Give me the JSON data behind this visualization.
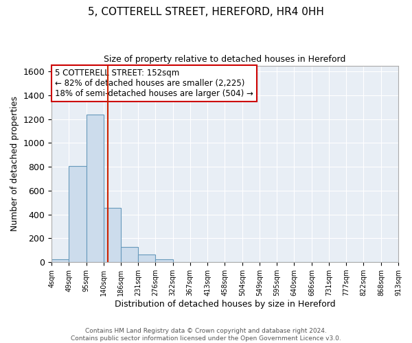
{
  "title": "5, COTTERELL STREET, HEREFORD, HR4 0HH",
  "subtitle": "Size of property relative to detached houses in Hereford",
  "xlabel": "Distribution of detached houses by size in Hereford",
  "ylabel": "Number of detached properties",
  "bar_edges": [
    4,
    49,
    95,
    140,
    186,
    231,
    276,
    322,
    367,
    413,
    458,
    504,
    549,
    595,
    640,
    686,
    731,
    777,
    822,
    868,
    913
  ],
  "bar_heights": [
    25,
    805,
    1240,
    455,
    130,
    65,
    25,
    0,
    0,
    0,
    0,
    0,
    0,
    0,
    0,
    0,
    0,
    0,
    0,
    0
  ],
  "bar_color": "#ccdcec",
  "bar_edge_color": "#6699bb",
  "vline_x": 152,
  "vline_color": "#cc2200",
  "ylim": [
    0,
    1650
  ],
  "yticks": [
    0,
    200,
    400,
    600,
    800,
    1000,
    1200,
    1400,
    1600
  ],
  "annotation_text_line1": "5 COTTERELL STREET: 152sqm",
  "annotation_text_line2": "← 82% of detached houses are smaller (2,225)",
  "annotation_text_line3": "18% of semi-detached houses are larger (504) →",
  "footer_line1": "Contains HM Land Registry data © Crown copyright and database right 2024.",
  "footer_line2": "Contains public sector information licensed under the Open Government Licence v3.0.",
  "bg_color": "#ffffff",
  "plot_bg_color": "#e8eef5",
  "grid_color": "#ffffff",
  "tick_labels": [
    "4sqm",
    "49sqm",
    "95sqm",
    "140sqm",
    "186sqm",
    "231sqm",
    "276sqm",
    "322sqm",
    "367sqm",
    "413sqm",
    "458sqm",
    "504sqm",
    "549sqm",
    "595sqm",
    "640sqm",
    "686sqm",
    "731sqm",
    "777sqm",
    "822sqm",
    "868sqm",
    "913sqm"
  ]
}
